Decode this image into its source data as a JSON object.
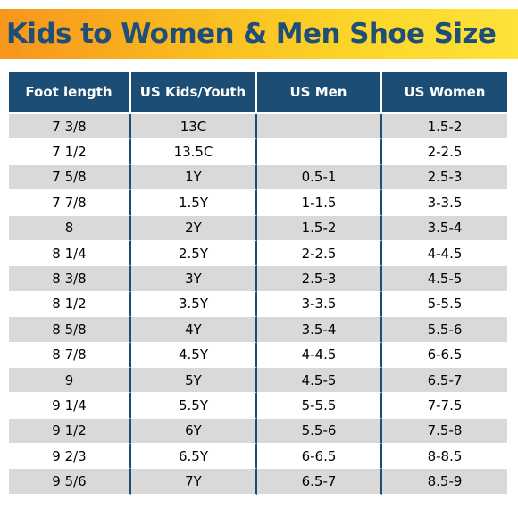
{
  "title": "Kids to Women & Men Shoe Size",
  "table": {
    "headers": [
      "Foot length",
      "US Kids/Youth",
      "US Men",
      "US Women"
    ],
    "rows": [
      [
        "7 3/8",
        "13C",
        "",
        "1.5-2"
      ],
      [
        "7 1/2",
        "13.5C",
        "",
        "2-2.5"
      ],
      [
        "7 5/8",
        "1Y",
        "0.5-1",
        "2.5-3"
      ],
      [
        "7 7/8",
        "1.5Y",
        "1-1.5",
        "3-3.5"
      ],
      [
        "8",
        "2Y",
        "1.5-2",
        "3.5-4"
      ],
      [
        "8 1/4",
        "2.5Y",
        "2-2.5",
        "4-4.5"
      ],
      [
        "8 3/8",
        "3Y",
        "2.5-3",
        "4.5-5"
      ],
      [
        "8 1/2",
        "3.5Y",
        "3-3.5",
        "5-5.5"
      ],
      [
        "8 5/8",
        "4Y",
        "3.5-4",
        "5.5-6"
      ],
      [
        "8 7/8",
        "4.5Y",
        "4-4.5",
        "6-6.5"
      ],
      [
        "9",
        "5Y",
        "4.5-5",
        "6.5-7"
      ],
      [
        "9 1/4",
        "5.5Y",
        "5-5.5",
        "7-7.5"
      ],
      [
        "9 1/2",
        "6Y",
        "5.5-6",
        "7.5-8"
      ],
      [
        "9 2/3",
        "6.5Y",
        "6-6.5",
        "8-8.5"
      ],
      [
        "9 5/6",
        "7Y",
        "6.5-7",
        "8.5-9"
      ]
    ]
  },
  "colors": {
    "title_text": "#1f4e79",
    "banner_orange": "#f7951d",
    "banner_yellow": "#fde23a",
    "header_bg": "#1c4d74",
    "row_shade": "#d9d9d9"
  }
}
